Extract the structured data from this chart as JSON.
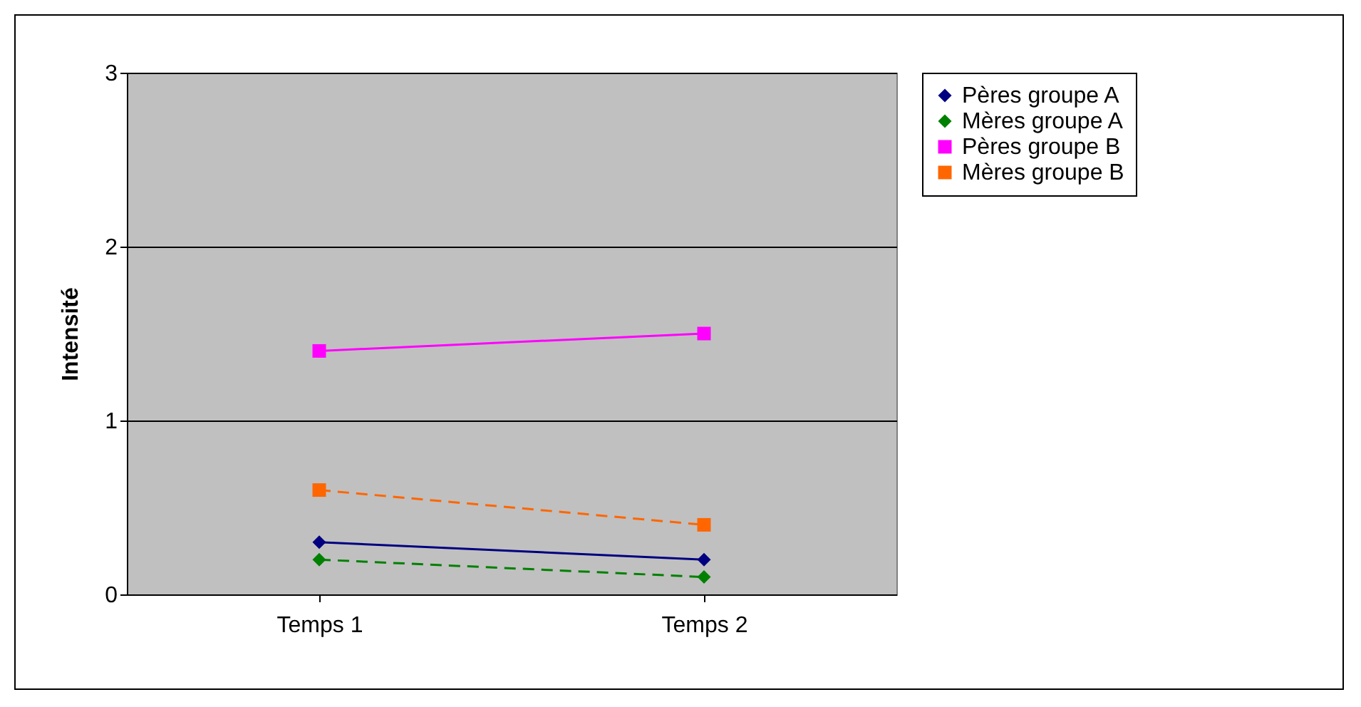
{
  "chart_data": {
    "type": "line",
    "ylabel": "Intensité",
    "categories": [
      "Temps 1",
      "Temps 2"
    ],
    "series": [
      {
        "name": "Pères groupe A",
        "color": "#000080",
        "values": [
          0.3,
          0.2
        ],
        "marker": "diamond",
        "line_style": "solid"
      },
      {
        "name": "Mères groupe A",
        "color": "#008000",
        "values": [
          0.2,
          0.1
        ],
        "marker": "diamond",
        "line_style": "dashed"
      },
      {
        "name": "Pères groupe B",
        "color": "#ff00ff",
        "values": [
          1.4,
          1.5
        ],
        "marker": "square",
        "line_style": "solid"
      },
      {
        "name": "Mères groupe B",
        "color": "#ff6600",
        "values": [
          0.6,
          0.4
        ],
        "marker": "square",
        "line_style": "dashed"
      }
    ],
    "ylim": [
      0,
      3
    ],
    "yticks": [
      0,
      1,
      2,
      3
    ],
    "grid": "y",
    "legend": "right"
  }
}
